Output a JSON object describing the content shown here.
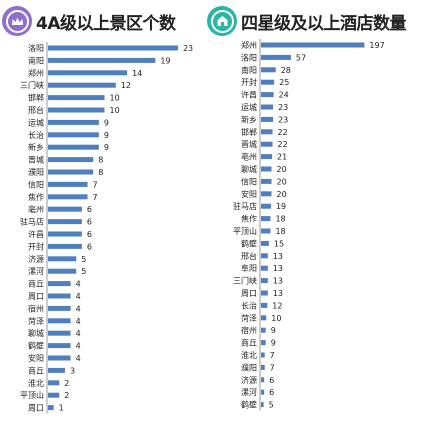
{
  "left": {
    "title": "4A级以上景区个数",
    "badge_color": "#8e6fd0",
    "icon": "crown-icon"
  },
  "right": {
    "title": "四星级及以上酒店数量",
    "badge_color": "#2ab5a5",
    "icon": "building-icon"
  },
  "bar_color": "#4f7fbf",
  "chart_data": [
    {
      "type": "bar",
      "orientation": "horizontal",
      "title": "4A级以上景区个数",
      "categories": [
        "洛阳",
        "南阳",
        "郑州",
        "三门峡",
        "邯郸",
        "邢台",
        "运城",
        "长治",
        "新乡",
        "晋城",
        "濮阳",
        "信阳",
        "焦作",
        "亳州",
        "驻马店",
        "许昌",
        "开封",
        "济源",
        "漯河",
        "商丘",
        "周口",
        "宿州",
        "菏泽",
        "聊城",
        "鹤壁",
        "安阳",
        "商丘",
        "淮北",
        "平顶山",
        "周口"
      ],
      "values": [
        23,
        19,
        14,
        12,
        10,
        10,
        9,
        9,
        9,
        8,
        8,
        7,
        7,
        6,
        6,
        6,
        6,
        5,
        5,
        4,
        4,
        4,
        4,
        4,
        4,
        4,
        3,
        2,
        2,
        1
      ],
      "grid": false,
      "legend": "none"
    },
    {
      "type": "bar",
      "orientation": "horizontal",
      "title": "四星级及以上酒店数量",
      "categories": [
        "郑州",
        "洛阳",
        "南阳",
        "开封",
        "许昌",
        "运城",
        "新乡",
        "邯郸",
        "晋城",
        "亳州",
        "聊城",
        "信阳",
        "安阳",
        "驻马店",
        "焦作",
        "平顶山",
        "鹤壁",
        "邢台",
        "阜阳",
        "三门峡",
        "周口",
        "长治",
        "菏泽",
        "宿州",
        "商丘",
        "淮北",
        "濮阳",
        "济源",
        "漯河",
        "鹤壁"
      ],
      "values": [
        197,
        57,
        28,
        25,
        24,
        23,
        23,
        22,
        22,
        21,
        20,
        20,
        20,
        19,
        18,
        18,
        15,
        13,
        13,
        13,
        13,
        12,
        10,
        9,
        9,
        7,
        7,
        6,
        6,
        5
      ],
      "grid": false,
      "legend": "none"
    }
  ]
}
